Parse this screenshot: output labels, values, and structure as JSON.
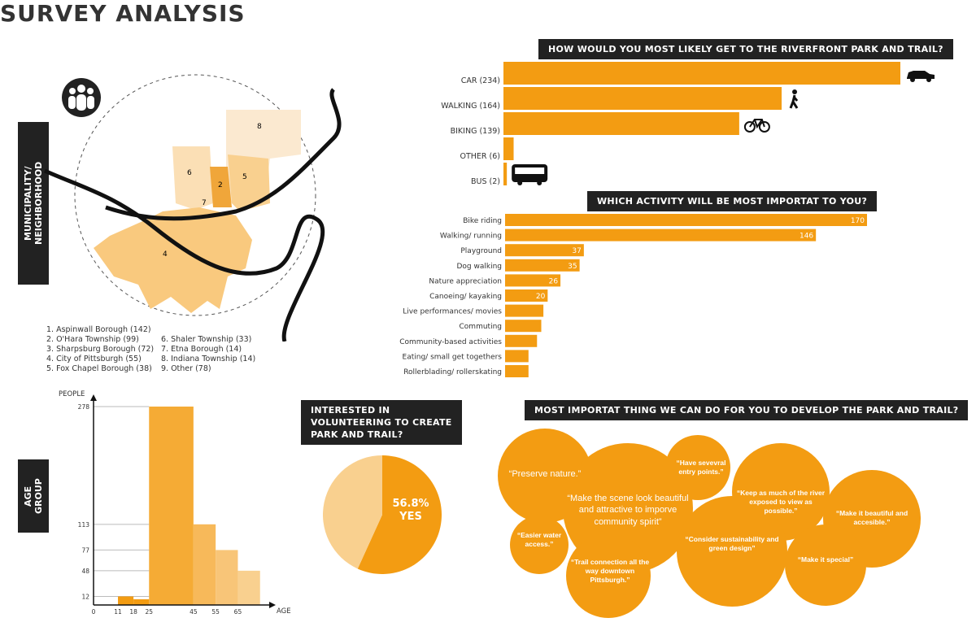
{
  "title": "SURVEY ANALYSIS",
  "colors": {
    "orange": "#f39c12",
    "light_orange": "#f9d08f",
    "dark": "#222222"
  },
  "map": {
    "side_label": "MUNICIPALITY/ NEIGHBORHOOD",
    "icon": "people-group-icon",
    "region_numbers": [
      "2",
      "4",
      "5",
      "6",
      "7",
      "8"
    ],
    "legend_col1": [
      "1. Aspinwall Borough (142)",
      "2. O'Hara Township (99)",
      "3. Sharpsburg Borough (72)",
      "4. City of Pittsburgh (55)",
      "5. Fox Chapel Borough (38)"
    ],
    "legend_col2": [
      "6. Shaler Township (33)",
      "7. Etna Borough (14)",
      "8. Indiana Township (14)",
      "9. Other (78)"
    ]
  },
  "chart_data": [
    {
      "type": "bar",
      "orientation": "horizontal",
      "title": "HOW WOULD YOU MOST LIKELY GET TO THE RIVERFRONT PARK AND TRAIL?",
      "categories": [
        "CAR (234)",
        "WALKING (164)",
        "BIKING (139)",
        "OTHER (6)",
        "BUS (2)"
      ],
      "values": [
        234,
        164,
        139,
        6,
        2
      ],
      "icons": [
        "car-icon",
        "pedestrian-icon",
        "bicycle-icon",
        "",
        "bus-icon"
      ]
    },
    {
      "type": "bar",
      "orientation": "horizontal",
      "title": "WHICH ACTIVITY WILL BE MOST IMPORTAT TO YOU?",
      "categories": [
        "Bike riding",
        "Walking/ running",
        "Playground",
        "Dog walking",
        "Nature appreciation",
        "Canoeing/ kayaking",
        "Live performances/ movies",
        "Commuting",
        "Community-based activities",
        "Eating/ small get togethers",
        "Rollerblading/ rollerskating"
      ],
      "values": [
        170,
        146,
        37,
        35,
        26,
        20,
        18,
        17,
        15,
        11,
        11
      ],
      "data_labels": [
        "170",
        "146",
        "37",
        "35",
        "26",
        "20",
        "",
        "",
        "",
        "",
        ""
      ]
    },
    {
      "type": "bar",
      "subtype": "histogram",
      "side_label": "AGE GROUP",
      "xlabel": "AGE",
      "ylabel": "PEOPLE",
      "x_ticks": [
        "0",
        "11",
        "18",
        "25",
        "45",
        "55",
        "65"
      ],
      "y_ticks": [
        "12",
        "48",
        "77",
        "113",
        "278"
      ],
      "bins": [
        [
          11,
          18
        ],
        [
          18,
          25
        ],
        [
          25,
          45
        ],
        [
          45,
          55
        ],
        [
          55,
          65
        ],
        [
          65,
          75
        ]
      ],
      "values": [
        12,
        8,
        278,
        113,
        77,
        48
      ],
      "bin_colors": [
        "#f39c12",
        "#f39c12",
        "#f5ab35",
        "#f7b95a",
        "#f8c578",
        "#f9d08f"
      ]
    },
    {
      "type": "pie",
      "title": "INTERESTED IN VOLUNTEERING TO CREATE PARK AND TRAIL?",
      "slices": [
        {
          "label": "YES",
          "value": 56.8,
          "color": "#f39c12"
        },
        {
          "label": "",
          "value": 43.2,
          "color": "#f9d08f"
        }
      ],
      "data_label": "56.8%",
      "data_label2": "YES"
    }
  ],
  "bubbles": {
    "title": "MOST IMPORTAT THING WE CAN DO FOR YOU TO DEVELOP THE PARK AND TRAIL?",
    "quotes": [
      "“Preserve nature.”",
      "“Make the scene look beautiful and attractive to imporve community spirit”",
      "“Have sevevral entry points.”",
      "“Keep as much of the river exposed to view as possible.”",
      "“Make it beautiful and accesible.”",
      "“Easier water access.”",
      "“Trail connection all the way downtown Pittsburgh.”",
      "“Consider sustainability and green design”",
      "“Make it special”"
    ]
  }
}
